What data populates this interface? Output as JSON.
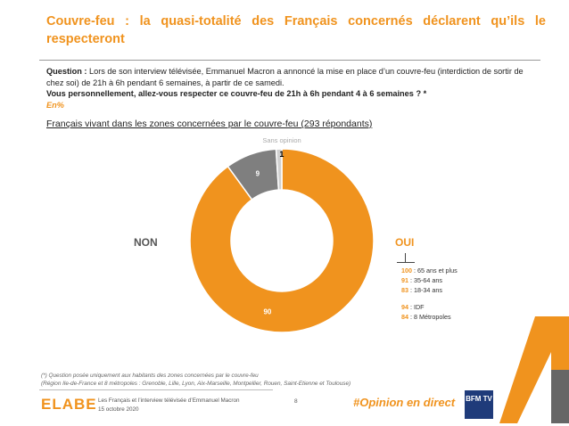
{
  "header": {
    "title": "Couvre-feu : la quasi-totalité des Français concernés déclarent qu’ils le respecteront"
  },
  "question": {
    "label": "Question :",
    "text": " Lors de son interview télévisée, Emmanuel Macron a annoncé la mise en place d’un couvre-feu (interdiction de sortir de chez soi) de 21h à 6h pendant 6 semaines, à partir de ce samedi.",
    "bold_text": "Vous personnellement, allez-vous respecter ce couvre-feu de 21h à 6h pendant 4 à 6 semaines ? *",
    "unit": "En%"
  },
  "subtitle": "Français vivant dans les zones concernées par le couvre-feu (293 répondants)",
  "chart_data": {
    "type": "pie",
    "style": "donut",
    "categories": [
      "OUI",
      "NON",
      "Sans opinion"
    ],
    "values": [
      90,
      9,
      1
    ],
    "colors": [
      "#f0931e",
      "#7f7f7f",
      "#d0d0d0"
    ],
    "slice_labels": [
      "90",
      "9",
      "1"
    ],
    "outside_labels": {
      "oui": "OUI",
      "non": "NON",
      "sans_opinion": "Sans opinion"
    }
  },
  "breakdown": {
    "age": [
      {
        "value": "100",
        "label": " : 65 ans et plus"
      },
      {
        "value": "91",
        "label": " : 35-64 ans"
      },
      {
        "value": "83",
        "label": " : 18-34 ans"
      }
    ],
    "region": [
      {
        "value": "94",
        "label": " : IDF"
      },
      {
        "value": "84",
        "label": " : 8 Métropoles"
      }
    ]
  },
  "footnote": {
    "line1": "(*) Question posée uniquement aux habitants des zones concernées par le couvre-feu",
    "line2": "(Région Ile-de-France et 8 métropoles : Grenoble, Lille, Lyon, Aix-Marseille, Montpellier, Rouen, Saint-Etienne et Toulouse)"
  },
  "footer": {
    "logo": "ELABE",
    "study": "Les Français et l’interview télévisée d’Emmanuel Macron",
    "date": "15 octobre 2020",
    "page": "8",
    "hashtag": "#Opinion en direct",
    "partner_logo": "BFM TV"
  }
}
